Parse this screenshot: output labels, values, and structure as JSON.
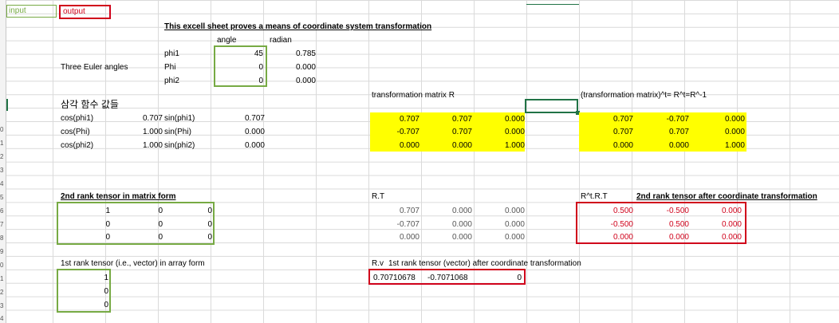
{
  "legend": {
    "input": "input",
    "output": "output"
  },
  "title": "This excell sheet proves a means of coordinate system transformation",
  "angles": {
    "section_label": "Three Euler angles",
    "header_angle": "angle",
    "header_radian": "radian",
    "rows": [
      {
        "name": "phi1",
        "angle": "45",
        "radian": "0.785"
      },
      {
        "name": "Phi",
        "angle": "0",
        "radian": "0.000"
      },
      {
        "name": "phi2",
        "angle": "0",
        "radian": "0.000"
      }
    ]
  },
  "trig": {
    "title": "삼각 함수 값들",
    "rows": [
      {
        "cos_label": "cos(phi1)",
        "cos_val": "0.707",
        "sin_label": "sin(phi1)",
        "sin_val": "0.707"
      },
      {
        "cos_label": "cos(Phi)",
        "cos_val": "1.000",
        "sin_label": "sin(Phi)",
        "sin_val": "0.000"
      },
      {
        "cos_label": "cos(phi2)",
        "cos_val": "1.000",
        "sin_label": "sin(phi2)",
        "sin_val": "0.000"
      }
    ]
  },
  "matrix_R": {
    "title": "transformation matrix  R",
    "rows": [
      [
        "0.707",
        "0.707",
        "0.000"
      ],
      [
        "-0.707",
        "0.707",
        "0.000"
      ],
      [
        "0.000",
        "0.000",
        "1.000"
      ]
    ]
  },
  "matrix_Rt": {
    "title": "(transformation matrix)^t= R^t=R^-1",
    "rows": [
      [
        "0.707",
        "-0.707",
        "0.000"
      ],
      [
        "0.707",
        "0.707",
        "0.000"
      ],
      [
        "0.000",
        "0.000",
        "1.000"
      ]
    ]
  },
  "tensor2": {
    "title": "2nd rank tensor in matrix form",
    "rows": [
      [
        "1",
        "0",
        "0"
      ],
      [
        "0",
        "0",
        "0"
      ],
      [
        "0",
        "0",
        "0"
      ]
    ]
  },
  "RT": {
    "title": "R.T",
    "rows": [
      [
        "0.707",
        "0.000",
        "0.000"
      ],
      [
        "-0.707",
        "0.000",
        "0.000"
      ],
      [
        "0.000",
        "0.000",
        "0.000"
      ]
    ]
  },
  "RtTR": {
    "title": "R^t.R.T",
    "title2": "2nd rank tensor after coordinate transformation",
    "rows": [
      [
        "0.500",
        "-0.500",
        "0.000"
      ],
      [
        "-0.500",
        "0.500",
        "0.000"
      ],
      [
        "0.000",
        "0.000",
        "0.000"
      ]
    ]
  },
  "vector": {
    "title": "1st rank tensor (i.e., vector) in array form",
    "values": [
      "1",
      "0",
      "0"
    ]
  },
  "Rv": {
    "label": "R.v",
    "title": "1st rank tensor (vector) after coordinate transformation",
    "values": [
      "0.70710678",
      "-0.7071068",
      "0"
    ]
  },
  "row_numbers": [
    "0",
    "1",
    "2",
    "3",
    "4",
    "5",
    "6",
    "7",
    "8",
    "9",
    "0",
    "1",
    "2",
    "3",
    "4"
  ]
}
